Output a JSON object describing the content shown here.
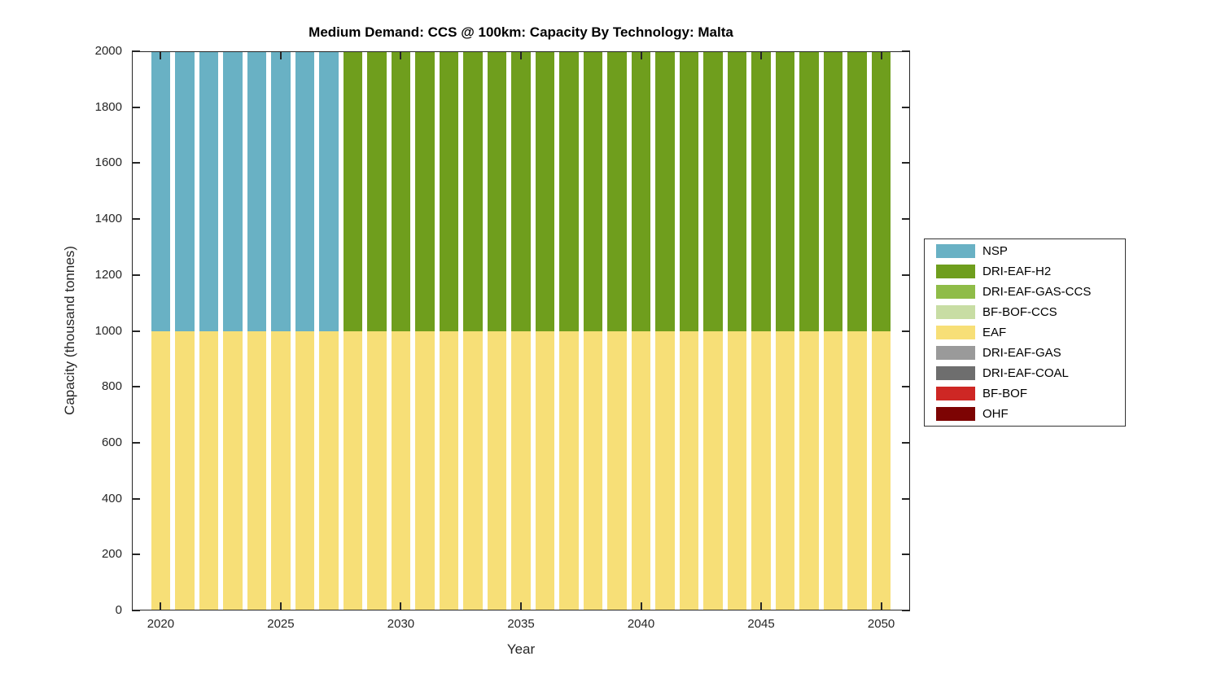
{
  "chart_data": {
    "type": "bar",
    "variant": "stacked",
    "title": "Medium Demand: CCS @ 100km: Capacity By Technology: Malta",
    "xlabel": "Year",
    "ylabel": "Capacity (thousand tonnes)",
    "xlim": [
      2018.8,
      2051.2
    ],
    "ylim": [
      0,
      2000
    ],
    "xticks": [
      2020,
      2025,
      2030,
      2035,
      2040,
      2045,
      2050
    ],
    "yticks": [
      0,
      200,
      400,
      600,
      800,
      1000,
      1200,
      1400,
      1600,
      1800,
      2000
    ],
    "grid": false,
    "bar_width_fraction": 0.8,
    "axis_color": "#262626",
    "years": [
      2020,
      2021,
      2022,
      2023,
      2024,
      2025,
      2026,
      2027,
      2028,
      2029,
      2030,
      2031,
      2032,
      2033,
      2034,
      2035,
      2036,
      2037,
      2038,
      2039,
      2040,
      2041,
      2042,
      2043,
      2044,
      2045,
      2046,
      2047,
      2048,
      2049,
      2050
    ],
    "series_stack_bottom_to_top": [
      {
        "name": "EAF",
        "color": "#F7DF77",
        "values": [
          1000,
          1000,
          1000,
          1000,
          1000,
          1000,
          1000,
          1000,
          1000,
          1000,
          1000,
          1000,
          1000,
          1000,
          1000,
          1000,
          1000,
          1000,
          1000,
          1000,
          1000,
          1000,
          1000,
          1000,
          1000,
          1000,
          1000,
          1000,
          1000,
          1000,
          1000
        ]
      },
      {
        "name": "NSP",
        "color": "#69B1C4",
        "values": [
          1000,
          1000,
          1000,
          1000,
          1000,
          1000,
          1000,
          1000,
          0,
          0,
          0,
          0,
          0,
          0,
          0,
          0,
          0,
          0,
          0,
          0,
          0,
          0,
          0,
          0,
          0,
          0,
          0,
          0,
          0,
          0,
          0
        ]
      },
      {
        "name": "DRI-EAF-H2",
        "color": "#6F9E1D",
        "values": [
          0,
          0,
          0,
          0,
          0,
          0,
          0,
          0,
          1000,
          1000,
          1000,
          1000,
          1000,
          1000,
          1000,
          1000,
          1000,
          1000,
          1000,
          1000,
          1000,
          1000,
          1000,
          1000,
          1000,
          1000,
          1000,
          1000,
          1000,
          1000,
          1000
        ]
      },
      {
        "name": "DRI-EAF-GAS-CCS",
        "color": "#8FBC48",
        "values": [
          0,
          0,
          0,
          0,
          0,
          0,
          0,
          0,
          0,
          0,
          0,
          0,
          0,
          0,
          0,
          0,
          0,
          0,
          0,
          0,
          0,
          0,
          0,
          0,
          0,
          0,
          0,
          0,
          0,
          0,
          0
        ]
      },
      {
        "name": "BF-BOF-CCS",
        "color": "#C8DDA4",
        "values": [
          0,
          0,
          0,
          0,
          0,
          0,
          0,
          0,
          0,
          0,
          0,
          0,
          0,
          0,
          0,
          0,
          0,
          0,
          0,
          0,
          0,
          0,
          0,
          0,
          0,
          0,
          0,
          0,
          0,
          0,
          0
        ]
      },
      {
        "name": "DRI-EAF-GAS",
        "color": "#9A9A9A",
        "values": [
          0,
          0,
          0,
          0,
          0,
          0,
          0,
          0,
          0,
          0,
          0,
          0,
          0,
          0,
          0,
          0,
          0,
          0,
          0,
          0,
          0,
          0,
          0,
          0,
          0,
          0,
          0,
          0,
          0,
          0,
          0
        ]
      },
      {
        "name": "DRI-EAF-COAL",
        "color": "#6E6E6E",
        "values": [
          0,
          0,
          0,
          0,
          0,
          0,
          0,
          0,
          0,
          0,
          0,
          0,
          0,
          0,
          0,
          0,
          0,
          0,
          0,
          0,
          0,
          0,
          0,
          0,
          0,
          0,
          0,
          0,
          0,
          0,
          0
        ]
      },
      {
        "name": "BF-BOF",
        "color": "#CE2724",
        "values": [
          0,
          0,
          0,
          0,
          0,
          0,
          0,
          0,
          0,
          0,
          0,
          0,
          0,
          0,
          0,
          0,
          0,
          0,
          0,
          0,
          0,
          0,
          0,
          0,
          0,
          0,
          0,
          0,
          0,
          0,
          0
        ]
      },
      {
        "name": "OHF",
        "color": "#7D0403",
        "values": [
          0,
          0,
          0,
          0,
          0,
          0,
          0,
          0,
          0,
          0,
          0,
          0,
          0,
          0,
          0,
          0,
          0,
          0,
          0,
          0,
          0,
          0,
          0,
          0,
          0,
          0,
          0,
          0,
          0,
          0,
          0
        ]
      }
    ],
    "legend": {
      "position": "right",
      "entries": [
        {
          "label": "NSP",
          "color": "#69B1C4"
        },
        {
          "label": "DRI-EAF-H2",
          "color": "#6F9E1D"
        },
        {
          "label": "DRI-EAF-GAS-CCS",
          "color": "#8FBC48"
        },
        {
          "label": "BF-BOF-CCS",
          "color": "#C8DDA4"
        },
        {
          "label": "EAF",
          "color": "#F7DF77"
        },
        {
          "label": "DRI-EAF-GAS",
          "color": "#9A9A9A"
        },
        {
          "label": "DRI-EAF-COAL",
          "color": "#6E6E6E"
        },
        {
          "label": "BF-BOF",
          "color": "#CE2724"
        },
        {
          "label": "OHF",
          "color": "#7D0403"
        }
      ]
    }
  }
}
